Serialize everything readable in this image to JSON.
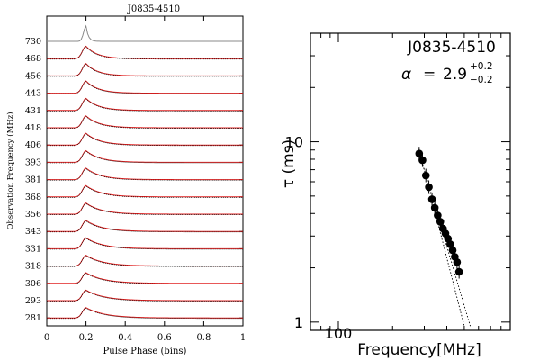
{
  "chart_data": [
    {
      "type": "line",
      "title": "J0835-4510",
      "xlabel": "Pulse Phase (bins)",
      "ylabel": "Observation Frequency (MHz)",
      "xlim": [
        0,
        1
      ],
      "xticks": [
        "0",
        "0.2",
        "0.4",
        "0.6",
        "0.8",
        "1"
      ],
      "tick_values": [
        0,
        0.2,
        0.4,
        0.6,
        0.8,
        1
      ],
      "frequencies_mhz": [
        "730",
        "468",
        "456",
        "443",
        "431",
        "418",
        "406",
        "393",
        "381",
        "368",
        "356",
        "343",
        "331",
        "318",
        "306",
        "293",
        "281"
      ],
      "peak_phase": 0.2,
      "series_colors": {
        "observed": "#000000",
        "fit": "#e02020",
        "top_profile": "#888888"
      },
      "grid": false
    },
    {
      "type": "scatter",
      "title": "J0835-4510",
      "annotation": {
        "symbol": "α",
        "eq": "=",
        "value": "2.9",
        "plus": "+0.2",
        "minus": "−0.2"
      },
      "xlabel": "Frequency[MHz]",
      "ylabel": "τ (ms)",
      "xscale": "log",
      "yscale": "log",
      "xlim": [
        70,
        900
      ],
      "ylim": [
        0.9,
        40
      ],
      "xticks": [
        {
          "value": 100,
          "label": "100"
        }
      ],
      "yticks": [
        {
          "value": 1,
          "label": "1"
        },
        {
          "value": 10,
          "label": "10"
        }
      ],
      "points": [
        {
          "x": 281,
          "y": 8.6
        },
        {
          "x": 293,
          "y": 7.9
        },
        {
          "x": 306,
          "y": 6.5
        },
        {
          "x": 318,
          "y": 5.6
        },
        {
          "x": 331,
          "y": 4.8
        },
        {
          "x": 343,
          "y": 4.3
        },
        {
          "x": 356,
          "y": 3.9
        },
        {
          "x": 368,
          "y": 3.6
        },
        {
          "x": 381,
          "y": 3.3
        },
        {
          "x": 393,
          "y": 3.1
        },
        {
          "x": 406,
          "y": 2.9
        },
        {
          "x": 418,
          "y": 2.7
        },
        {
          "x": 431,
          "y": 2.5
        },
        {
          "x": 443,
          "y": 2.3
        },
        {
          "x": 456,
          "y": 2.15
        },
        {
          "x": 468,
          "y": 1.9
        }
      ],
      "fit_lines": [
        {
          "style": "dotted",
          "from": {
            "x": 281,
            "y": 9.0
          },
          "to": {
            "x": 500,
            "y": 0.95
          }
        },
        {
          "style": "dotted",
          "from": {
            "x": 281,
            "y": 8.7
          },
          "to": {
            "x": 540,
            "y": 0.95
          }
        }
      ],
      "grid": false
    }
  ]
}
